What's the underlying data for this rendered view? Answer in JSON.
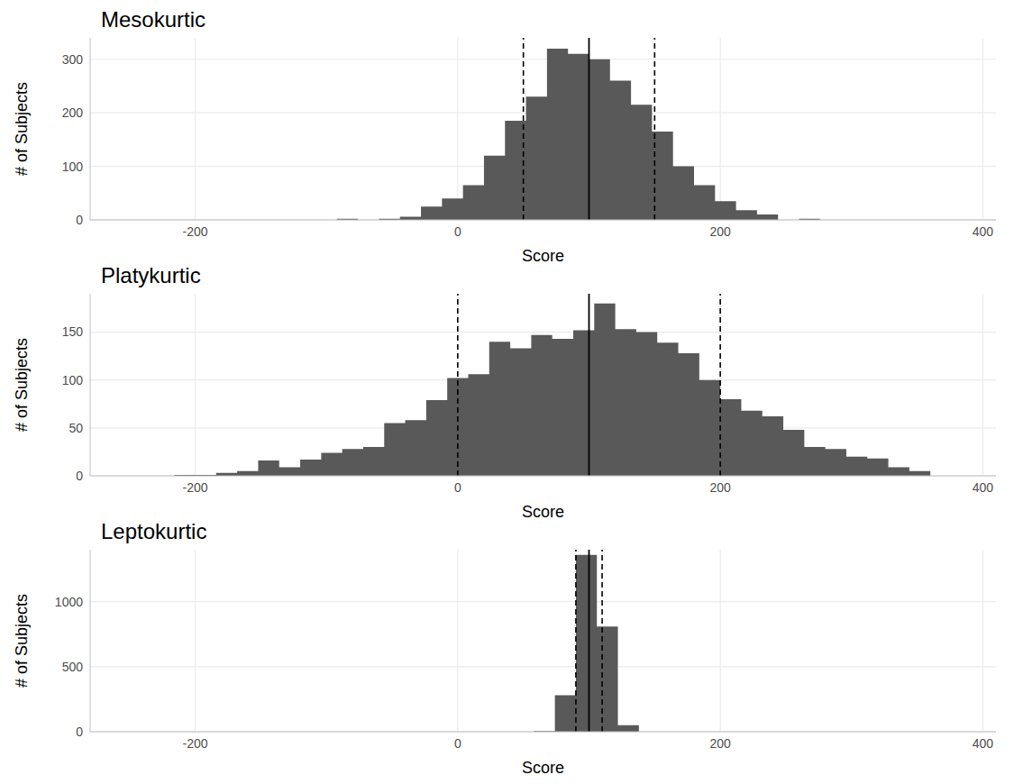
{
  "chart_data": [
    {
      "type": "histogram",
      "title": "Mesokurtic",
      "x_label": "Score",
      "y_label": "# of Subjects",
      "bins": [
        -92,
        -76,
        -60,
        -44,
        -28,
        -12,
        4,
        20,
        36,
        52,
        68,
        84,
        100,
        116,
        132,
        148,
        164,
        180,
        196,
        212,
        228,
        244,
        260,
        276
      ],
      "counts": [
        2,
        0,
        2,
        6,
        25,
        40,
        65,
        120,
        185,
        230,
        320,
        310,
        300,
        260,
        215,
        165,
        100,
        65,
        35,
        18,
        10,
        0,
        2
      ],
      "color": "#595959",
      "xlim": [
        -280,
        410
      ],
      "xticks": [
        -200,
        0,
        200,
        400
      ],
      "ylim": [
        0,
        340
      ],
      "yticks": [
        0,
        100,
        200,
        300
      ],
      "grid": true,
      "mean": 100,
      "sd_bounds": [
        50,
        150
      ]
    },
    {
      "type": "histogram",
      "title": "Platykurtic",
      "x_label": "Score",
      "y_label": "# of Subjects",
      "bins": [
        -216,
        -200,
        -184,
        -168,
        -152,
        -136,
        -120,
        -104,
        -88,
        -72,
        -56,
        -40,
        -24,
        -8,
        8,
        24,
        40,
        56,
        72,
        88,
        104,
        120,
        136,
        152,
        168,
        184,
        200,
        216,
        232,
        248,
        264,
        280,
        296,
        312,
        328,
        344,
        360
      ],
      "counts": [
        1,
        1,
        3,
        5,
        16,
        9,
        17,
        24,
        28,
        30,
        55,
        58,
        79,
        102,
        106,
        140,
        133,
        147,
        143,
        152,
        180,
        153,
        150,
        139,
        128,
        100,
        80,
        68,
        62,
        48,
        30,
        28,
        20,
        18,
        9,
        5
      ],
      "color": "#595959",
      "xlim": [
        -280,
        410
      ],
      "xticks": [
        -200,
        0,
        200,
        400
      ],
      "ylim": [
        0,
        190
      ],
      "yticks": [
        0,
        50,
        100,
        150
      ],
      "grid": true,
      "mean": 100,
      "sd_bounds": [
        0,
        200
      ]
    },
    {
      "type": "histogram",
      "title": "Leptokurtic",
      "x_label": "Score",
      "y_label": "# of Subjects",
      "bins": [
        58,
        74,
        90,
        106,
        122,
        138
      ],
      "counts": [
        5,
        280,
        1360,
        810,
        50
      ],
      "color": "#595959",
      "xlim": [
        -280,
        410
      ],
      "xticks": [
        -200,
        0,
        200,
        400
      ],
      "ylim": [
        0,
        1400
      ],
      "yticks": [
        0,
        500,
        1000
      ],
      "grid": true,
      "mean": 100,
      "sd_bounds": [
        90,
        110
      ]
    }
  ]
}
